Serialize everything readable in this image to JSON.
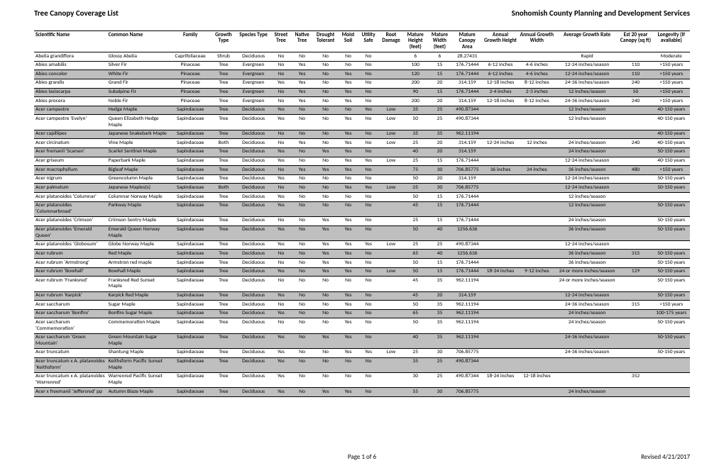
{
  "header": {
    "title_left": "Tree Canopy Coverage List",
    "title_right": "Snohomish County Planning and Development Services"
  },
  "table": {
    "columns": [
      {
        "label": "Scientific Name",
        "width": 90
      },
      {
        "label": "Common Name",
        "width": 78
      },
      {
        "label": "Family",
        "width": 50
      },
      {
        "label": "Growth Type",
        "width": 32
      },
      {
        "label": "Species Type",
        "width": 42
      },
      {
        "label": "Street Tree",
        "width": 26
      },
      {
        "label": "Native Tree",
        "width": 26
      },
      {
        "label": "Drought Tolerant",
        "width": 32
      },
      {
        "label": "Moist Soil",
        "width": 24
      },
      {
        "label": "Utility Safe",
        "width": 26
      },
      {
        "label": "Root Damage",
        "width": 30
      },
      {
        "label": "Mature Height (feet)",
        "width": 30
      },
      {
        "label": "Mature Width (feet)",
        "width": 30
      },
      {
        "label": "Mature Canopy Area",
        "width": 38
      },
      {
        "label": "Annual Growth Height",
        "width": 44
      },
      {
        "label": "Annual Growth Width",
        "width": 46
      },
      {
        "label": "Average Growth Rate",
        "width": 78
      },
      {
        "label": "Est 20 year Canopy (sq ft)",
        "width": 42
      },
      {
        "label": "Longevity (If available)",
        "width": 46
      }
    ],
    "rows": [
      {
        "shaded": false,
        "cells": [
          "Abelia grandiflora",
          "Glossy Abelia",
          "Caprifoliaceae",
          "Shrub",
          "Deciduous",
          "No",
          "No",
          "No",
          "No",
          "No",
          "",
          "6",
          "6",
          "28.27431",
          "",
          "",
          "Rapid",
          "",
          "Moderate"
        ]
      },
      {
        "shaded": false,
        "cells": [
          "Abies amabilis",
          "Silver Fir",
          "Pinaceae",
          "Tree",
          "Evergreen",
          "No",
          "Yes",
          "No",
          "No",
          "No",
          "",
          "100",
          "15",
          "176.71444",
          "6-12 inches",
          "4-6 inches",
          "12-24 inches/season",
          "110",
          ">150 years"
        ]
      },
      {
        "shaded": true,
        "cells": [
          "Abies concolor",
          "White Fir",
          "Pinaceae",
          "Tree",
          "Evergreen",
          "No",
          "Yes",
          "No",
          "Yes",
          "No",
          "",
          "120",
          "15",
          "176.71444",
          "6-12 inches",
          "4-6 inches",
          "12-24 inches/season",
          "110",
          ">150 years"
        ]
      },
      {
        "shaded": false,
        "cells": [
          "Abies grandis",
          "Grand Fir",
          "Pinaceae",
          "Tree",
          "Evergreen",
          "Yes",
          "Yes",
          "No",
          "Yes",
          "No",
          "",
          "200",
          "20",
          "314.159",
          "12-18 inches",
          "8-12 inches",
          "24-36 inches/season",
          "240",
          ">150 years"
        ]
      },
      {
        "shaded": true,
        "cells": [
          "Abies lasiocarpa",
          "Subalpine Fir",
          "Pinaceae",
          "Tree",
          "Evergreen",
          "No",
          "Yes",
          "No",
          "Yes",
          "No",
          "",
          "90",
          "15",
          "176.71444",
          "2-4 inches",
          "2-3 inches",
          "12 inches/season",
          "50",
          ">150 years"
        ]
      },
      {
        "shaded": false,
        "cells": [
          "Abies procera",
          "Noble Fir",
          "Pinaceae",
          "Tree",
          "Evergreen",
          "No",
          "Yes",
          "No",
          "Yes",
          "No",
          "",
          "200",
          "20",
          "314.159",
          "12-18 inches",
          "8-12 inches",
          "24-36 inches/season",
          "240",
          ">150 years"
        ]
      },
      {
        "shaded": true,
        "cells": [
          "Acer campestre",
          "Hedge Maple",
          "Sapindaceae",
          "Tree",
          "Deciduous",
          "Yes",
          "No",
          "No",
          "No",
          "Yes",
          "Low",
          "35",
          "25",
          "490.87344",
          "",
          "",
          "12 inches/season",
          "",
          "40-150 years"
        ]
      },
      {
        "shaded": false,
        "cells": [
          "Acer campestre 'Evelyn'",
          "Queen Elizabeth Hedge Maple",
          "Sapindaceae",
          "Tree",
          "Deciduous",
          "Yes",
          "No",
          "No",
          "Yes",
          "No",
          "Low",
          "50",
          "25",
          "490.87344",
          "",
          "",
          "12 inches/season",
          "",
          "40-150 years"
        ]
      },
      {
        "shaded": true,
        "cells": [
          "Acer capillipes",
          "Japanese Snakebark Maple",
          "Sapindaceae",
          "Tree",
          "Deciduous",
          "No",
          "No",
          "No",
          "Yes",
          "No",
          "Low",
          "35",
          "35",
          "962.11194",
          "",
          "",
          "",
          "",
          "40-150 years"
        ]
      },
      {
        "shaded": false,
        "cells": [
          "Acer circinatum",
          "Vine Maple",
          "Sapindaceae",
          "Both",
          "Deciduous",
          "No",
          "Yes",
          "No",
          "Yes",
          "No",
          "Low",
          "25",
          "20",
          "314.159",
          "12-24 inches",
          "12 inches",
          "24 inches/season",
          "240",
          "40-150 years"
        ]
      },
      {
        "shaded": true,
        "cells": [
          "Acer fremanii 'Scarsen'",
          "Scarlet Sentinel Maple",
          "Sapindaceae",
          "Tree",
          "Deciduous",
          "Yes",
          "No",
          "Yes",
          "Yes",
          "No",
          "",
          "40",
          "20",
          "314.159",
          "",
          "",
          "24 inches/season",
          "",
          "50-150 years"
        ]
      },
      {
        "shaded": false,
        "cells": [
          "Acer griseum",
          "Paperbark Maple",
          "Sapindaceae",
          "Tree",
          "Deciduous",
          "Yes",
          "No",
          "No",
          "Yes",
          "Yes",
          "Low",
          "25",
          "15",
          "176.71444",
          "",
          "",
          "12-24 inches/season",
          "",
          "40-150 years"
        ]
      },
      {
        "shaded": true,
        "cells": [
          "Acer macrophyllum",
          "Bigleaf Maple",
          "Sapindaceae",
          "Tree",
          "Deciduous",
          "No",
          "Yes",
          "Yes",
          "Yes",
          "No",
          "",
          "75",
          "30",
          "706.85775",
          "36 inches",
          "24 inches",
          "36 inches/season",
          "480",
          ">150 years"
        ]
      },
      {
        "shaded": false,
        "cells": [
          "Acer nigrum",
          "Greencolumn Maple",
          "Sapindaceae",
          "Tree",
          "Deciduous",
          "Yes",
          "No",
          "No",
          "No",
          "No",
          "",
          "50",
          "20",
          "314.159",
          "",
          "",
          "12-24 inches/season",
          "",
          "50-150 years"
        ]
      },
      {
        "shaded": true,
        "cells": [
          "Acer palmatum",
          "Japanese Maples(s)",
          "Sapindaceae",
          "Both",
          "Deciduous",
          "No",
          "No",
          "No",
          "Yes",
          "Yes",
          "Low",
          "25",
          "30",
          "706.85775",
          "",
          "",
          "12-24 inches/season",
          "",
          "50-150 years"
        ]
      },
      {
        "shaded": false,
        "cells": [
          "Acer platanoides 'Columnar'",
          "Columnar Norway Maple",
          "Sapindaceae",
          "Tree",
          "Deciduous",
          "Yes",
          "No",
          "No",
          "No",
          "No",
          "",
          "50",
          "15",
          "176.71444",
          "",
          "",
          "12 inches/season",
          "",
          ""
        ]
      },
      {
        "shaded": true,
        "cells": [
          "Acer platanoides 'Columnarbroad'",
          "Parkway Maple",
          "Sapindaceae",
          "Tree",
          "Deciduous",
          "Yes",
          "No",
          "No",
          "No",
          "No",
          "",
          "45",
          "15",
          "176.71444",
          "",
          "",
          "12 inches/season",
          "",
          "50-150 years"
        ]
      },
      {
        "shaded": false,
        "cells": [
          "Acer platanoides 'Crimson'",
          "Crimson Sentry Maple",
          "Sapindaceae",
          "Tree",
          "Deciduous",
          "No",
          "No",
          "Yes",
          "Yes",
          "No",
          "",
          "25",
          "15",
          "176.71444",
          "",
          "",
          "24 inches/season",
          "",
          "50-150 years"
        ]
      },
      {
        "shaded": true,
        "cells": [
          "Acer platanoides 'Emerald Queen'",
          "Emerald Queen Norway Maple",
          "Sapindaceae",
          "Tree",
          "Deciduous",
          "Yes",
          "No",
          "Yes",
          "Yes",
          "No",
          "",
          "50",
          "40",
          "1256.636",
          "",
          "",
          "36 inches/season",
          "",
          "50-150 years"
        ]
      },
      {
        "shaded": false,
        "cells": [
          "Acer platanoides 'Globosum'",
          "Globe Norway Maple",
          "Sapindaceae",
          "Tree",
          "Deciduous",
          "Yes",
          "No",
          "Yes",
          "Yes",
          "Yes",
          "Low",
          "25",
          "25",
          "490.87344",
          "",
          "",
          "12-24 inches/season",
          "",
          ""
        ]
      },
      {
        "shaded": true,
        "cells": [
          "Acer rubrum",
          "Red Maple",
          "Sapindaceae",
          "Tree",
          "Deciduous",
          "No",
          "No",
          "Yes",
          "Yes",
          "No",
          "",
          "65",
          "40",
          "1256.636",
          "",
          "",
          "36 inches/season",
          "315",
          "50-150 years"
        ]
      },
      {
        "shaded": false,
        "cells": [
          "Acer rubrum 'Armstrong'",
          "Armstron red maple",
          "Sapindaceae",
          "Tree",
          "Deciduous",
          "No",
          "No",
          "Yes",
          "Yes",
          "No",
          "",
          "50",
          "15",
          "176.71444",
          "",
          "",
          "36 inches/season",
          "",
          "50-150 years"
        ]
      },
      {
        "shaded": true,
        "cells": [
          "Acer rubrum 'Bowhall'",
          "Bowhall Maple",
          "Sapindaceae",
          "Tree",
          "Deciduous",
          "Yes",
          "No",
          "Yes",
          "Yes",
          "No",
          "Low",
          "50",
          "15",
          "176.71444",
          "18-24 inches",
          "9-12 inches",
          "24 or more inches/season",
          "129",
          "50-150 years"
        ]
      },
      {
        "shaded": false,
        "cells": [
          "Acer rubrum 'Franksred'",
          "Franksred Red Sunset Maple",
          "Sapindaceae",
          "Tree",
          "Deciduous",
          "No",
          "No",
          "No",
          "No",
          "No",
          "",
          "45",
          "35",
          "962.11194",
          "",
          "",
          "24 or more inches/season",
          "",
          "50-150 years"
        ]
      },
      {
        "shaded": true,
        "cells": [
          "Acer rubrum 'Karpick'",
          "Karpick Red Maple",
          "Sapindaceae",
          "Tree",
          "Deciduous",
          "Yes",
          "No",
          "No",
          "Yes",
          "No",
          "",
          "45",
          "20",
          "314.159",
          "",
          "",
          "12-24 inches/season",
          "",
          "50-150 years"
        ]
      },
      {
        "shaded": false,
        "cells": [
          "Acer saccharum",
          "Sugar Maple",
          "Sapindaceae",
          "Tree",
          "Deciduous",
          "No",
          "No",
          "No",
          "Yes",
          "No",
          "",
          "50",
          "35",
          "962.11194",
          "",
          "",
          "24-36 inches/season",
          "315",
          ">150 years"
        ]
      },
      {
        "shaded": true,
        "cells": [
          "Acer saccharum 'Bonfire'",
          "Bonfire Sugar Maple",
          "Sapindaceae",
          "Tree",
          "Deciduous",
          "Yes",
          "No",
          "No",
          "Yes",
          "No",
          "",
          "65",
          "35",
          "962.11194",
          "",
          "",
          "24 inches/season",
          "",
          "100-175 years"
        ]
      },
      {
        "shaded": false,
        "cells": [
          "Acer saccharum 'Commemoration'",
          "Commemoration Maple",
          "Sapindaceae",
          "Tree",
          "Deciduous",
          "No",
          "No",
          "No",
          "Yes",
          "No",
          "",
          "50",
          "35",
          "962.11194",
          "",
          "",
          "24 inches/season",
          "",
          "50-150 years"
        ]
      },
      {
        "shaded": true,
        "cells": [
          "Acer saccharum 'Green Mountain'",
          "Green Mountain Sugar Maple",
          "Sapindaceae",
          "Tree",
          "Deciduous",
          "Yes",
          "No",
          "Yes",
          "Yes",
          "No",
          "",
          "40",
          "35",
          "962.11194",
          "",
          "",
          "24-36 inches/season",
          "",
          "50-150 years"
        ]
      },
      {
        "shaded": false,
        "cells": [
          "Acer truncatum",
          "Shantung Maple",
          "Sapindaceae",
          "Tree",
          "Deciduous",
          "Yes",
          "No",
          "No",
          "Yes",
          "Yes",
          "Low",
          "25",
          "30",
          "706.85775",
          "",
          "",
          "24-36 inches/season",
          "",
          "50-150 years"
        ]
      },
      {
        "shaded": true,
        "cells": [
          "Acer truncatum x A. platanoides 'Keithsform'",
          "Keithsform Pacific Sunset Maple",
          "Sapindaceae",
          "Tree",
          "Deciduous",
          "Yes",
          "No",
          "No",
          "No",
          "No",
          "",
          "35",
          "25",
          "490.87344",
          "",
          "",
          "",
          "",
          ""
        ]
      },
      {
        "shaded": false,
        "cells": [
          "Acer truncatum x A. platanoides 'Warrenred'",
          "Warrenred Pacific Sunset Maple",
          "Sapindaceae",
          "Tree",
          "Deciduous",
          "Yes",
          "No",
          "No",
          "No",
          "No",
          "",
          "30",
          "25",
          "490.87344",
          "18-24 inches",
          "12-18 inches",
          "",
          "352",
          ""
        ]
      },
      {
        "shaded": true,
        "cells": [
          "Acer x freemanii 'Jeffersred' pp",
          "Autumn Blaze Maple",
          "Sapindaceae",
          "Tree",
          "Deciduous",
          "Yes",
          "No",
          "Yes",
          "Yes",
          "No",
          "",
          "55",
          "30",
          "706.85775",
          "",
          "",
          "24 inches/season",
          "",
          ""
        ]
      }
    ]
  },
  "footer": {
    "page": "Page 1 of 6",
    "revised": "Revised 4/21/2017"
  },
  "style": {
    "shaded_color": "#bfbfbf",
    "border_color": "#000000",
    "font_family": "Calibri, Arial, sans-serif"
  }
}
